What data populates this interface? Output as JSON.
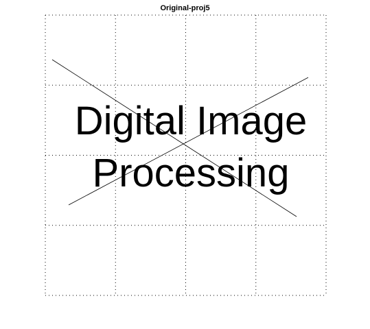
{
  "figure": {
    "title": "Original-proj5"
  },
  "image_content": {
    "line1": "Digital Image",
    "line2": "Processing",
    "strike_lines": 2
  },
  "axes": {
    "grid": "dotted",
    "grid_divisions_x": 4,
    "grid_divisions_y": 4,
    "ticks_visible": false
  },
  "colors": {
    "background": "#ffffff",
    "text": "#000000",
    "grid": "#000000",
    "lines": "#000000"
  }
}
